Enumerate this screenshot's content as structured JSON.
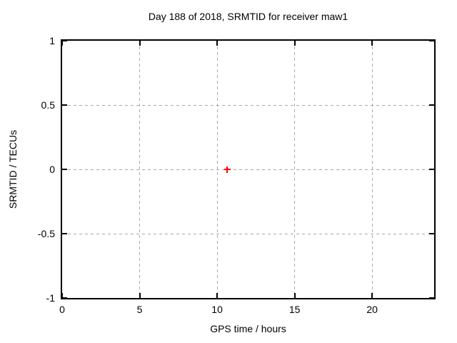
{
  "chart_data": {
    "type": "scatter",
    "title": "Day 188 of 2018, SRMTID for receiver maw1",
    "xlabel": "GPS time / hours",
    "ylabel": "SRMTID / TECUs",
    "xlim": [
      0,
      24
    ],
    "ylim": [
      -1,
      1
    ],
    "xticks": {
      "values": [
        0,
        5,
        10,
        15,
        20
      ],
      "labels": [
        "0",
        "5",
        "10",
        "15",
        "20"
      ]
    },
    "yticks": {
      "values": [
        1,
        0.5,
        0,
        -0.5,
        -1
      ],
      "labels": [
        "1",
        "0.5",
        "0",
        "-0.5",
        "-1"
      ]
    },
    "grid": true,
    "grid_style": "dashed",
    "legend_position": "none",
    "series": [
      {
        "name": "SRMTID",
        "marker": "plus",
        "color": "#ff0000",
        "points": [
          {
            "x": 10.65,
            "y": 0.0
          }
        ]
      }
    ],
    "colors": {
      "background": "#ffffff",
      "axis": "#000000",
      "grid": "#a8a8a8",
      "text": "#000000"
    }
  }
}
